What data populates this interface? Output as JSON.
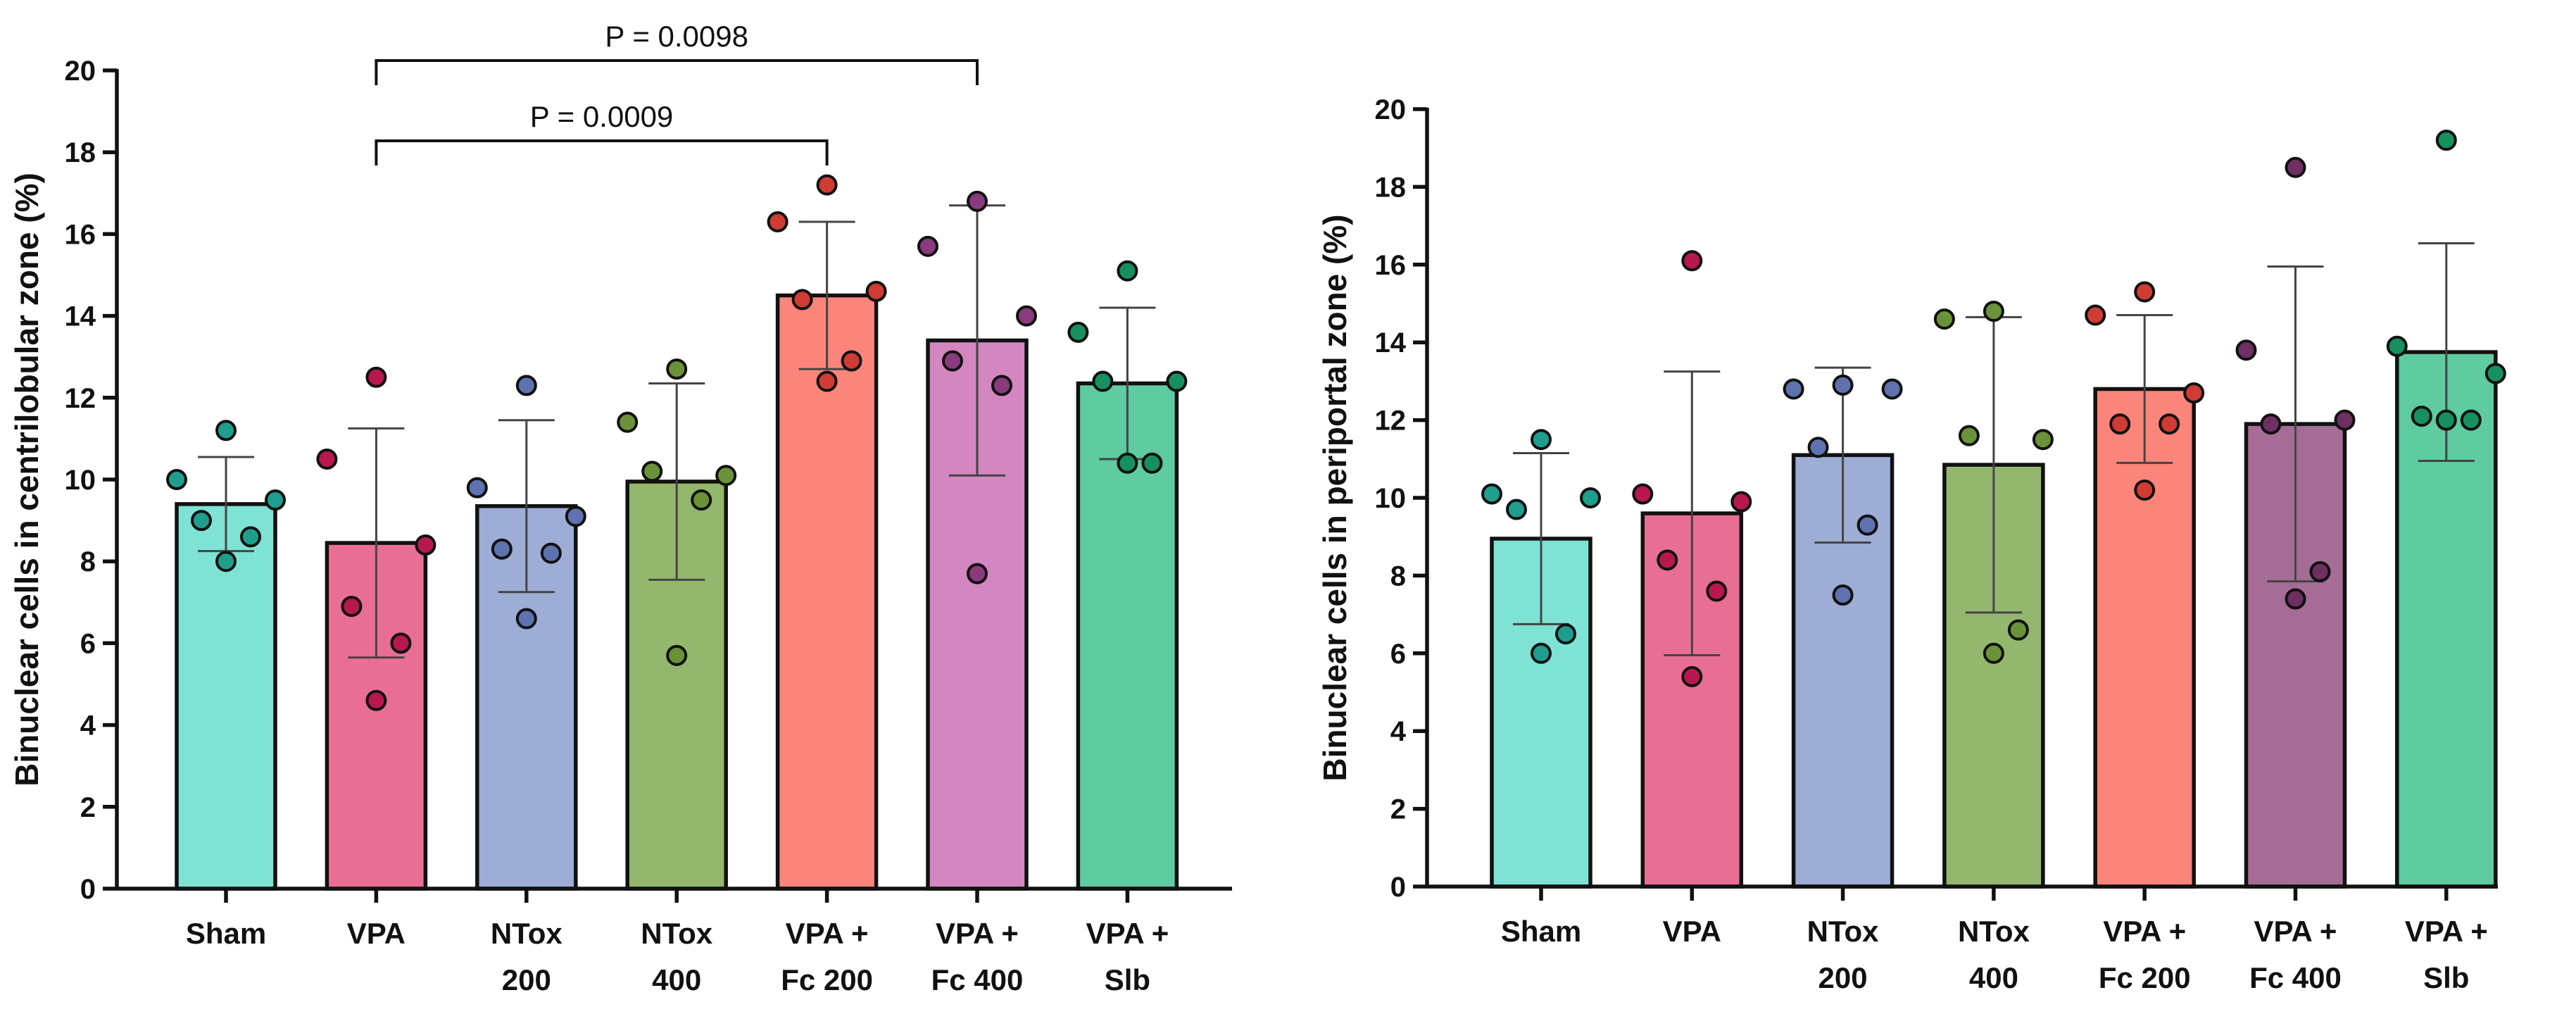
{
  "chart_data": [
    {
      "type": "bar",
      "title": "",
      "xlabel": "",
      "ylabel": "Binuclear cells in centrilobular zone (%)",
      "ylim": [
        0,
        20
      ],
      "yticks": [
        0,
        2,
        4,
        6,
        8,
        10,
        12,
        14,
        16,
        18,
        20
      ],
      "grid": false,
      "categories": [
        [
          "Sham"
        ],
        [
          "VPA"
        ],
        [
          "NTox",
          "200"
        ],
        [
          "NTox",
          "400"
        ],
        [
          "VPA +",
          "Fc 200"
        ],
        [
          "VPA +",
          "Fc 400"
        ],
        [
          "VPA +",
          "Slb"
        ]
      ],
      "values": [
        9.4,
        8.45,
        9.35,
        9.95,
        14.5,
        13.4,
        12.35
      ],
      "error": [
        1.15,
        2.8,
        2.1,
        2.4,
        1.8,
        3.3,
        1.85
      ],
      "colors": [
        "#7ee3d4",
        "#e86f93",
        "#9dadd5",
        "#93b76d",
        "#fb857a",
        "#d386c0",
        "#5ecba1"
      ],
      "points": [
        [
          11.2,
          10.0,
          9.5,
          9.0,
          8.6,
          8.0
        ],
        [
          12.5,
          10.5,
          8.4,
          6.9,
          6.0,
          4.6
        ],
        [
          12.3,
          9.8,
          9.1,
          8.3,
          8.2,
          6.6
        ],
        [
          12.7,
          11.4,
          10.1,
          10.2,
          9.5,
          5.7
        ],
        [
          17.2,
          16.3,
          14.6,
          14.4,
          12.9,
          12.4
        ],
        [
          16.8,
          15.7,
          14.0,
          12.9,
          12.3,
          7.7
        ],
        [
          15.1,
          13.6,
          12.4,
          12.4,
          10.4,
          10.4
        ]
      ],
      "point_colors": [
        "#1f9e8e",
        "#b8184f",
        "#5f72b0",
        "#6a9339",
        "#d03c33",
        "#8a3b7e",
        "#17905f"
      ],
      "significance": [
        {
          "from": 1,
          "to": 4,
          "label": "P = 0.0009"
        },
        {
          "from": 1,
          "to": 5,
          "label": "P = 0.0098"
        }
      ]
    },
    {
      "type": "bar",
      "title": "",
      "xlabel": "",
      "ylabel": "Binuclear cells in periportal zone (%)",
      "ylim": [
        0,
        20
      ],
      "yticks": [
        0,
        2,
        4,
        6,
        8,
        10,
        12,
        14,
        16,
        18,
        20
      ],
      "grid": false,
      "categories": [
        [
          "Sham"
        ],
        [
          "VPA"
        ],
        [
          "NTox",
          "200"
        ],
        [
          "NTox",
          "400"
        ],
        [
          "VPA +",
          "Fc 200"
        ],
        [
          "VPA +",
          "Fc 400"
        ],
        [
          "VPA +",
          "Slb"
        ]
      ],
      "values": [
        8.95,
        9.6,
        11.1,
        10.85,
        12.8,
        11.9,
        13.75
      ],
      "error": [
        2.2,
        3.65,
        2.25,
        3.8,
        1.9,
        4.05,
        2.8
      ],
      "colors": [
        "#7ee3d4",
        "#e86f93",
        "#9dadd5",
        "#93b76d",
        "#fb857a",
        "#a56c96",
        "#5ecba1"
      ],
      "points": [
        [
          11.5,
          10.1,
          10.0,
          9.7,
          6.5,
          6.0
        ],
        [
          16.1,
          10.1,
          9.9,
          8.4,
          7.6,
          5.4
        ],
        [
          12.9,
          12.8,
          12.8,
          11.3,
          9.3,
          7.5
        ],
        [
          14.8,
          14.6,
          11.5,
          11.6,
          6.6,
          6.0
        ],
        [
          15.3,
          14.7,
          12.7,
          11.9,
          11.9,
          10.2
        ],
        [
          18.5,
          13.8,
          12.0,
          11.9,
          8.1,
          7.4
        ],
        [
          19.2,
          13.9,
          13.2,
          12.1,
          12.0,
          12.0
        ]
      ],
      "point_colors": [
        "#1f9e8e",
        "#b8184f",
        "#5f72b0",
        "#6a9339",
        "#d03c33",
        "#6e2f62",
        "#17905f"
      ],
      "significance": []
    }
  ]
}
